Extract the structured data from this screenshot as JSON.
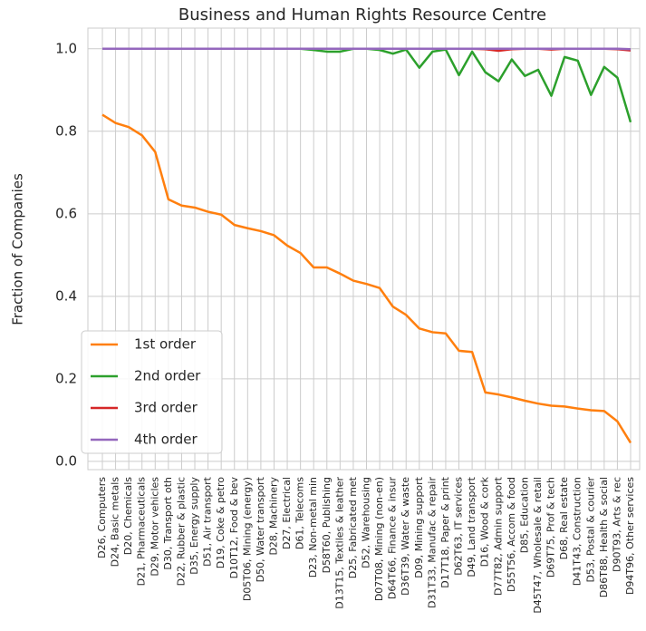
{
  "chart_data": {
    "type": "line",
    "title": "Business and Human Rights Resource Centre",
    "ylabel": "Fraction of Companies",
    "categories": [
      "D26, Computers",
      "D24, Basic metals",
      "D20, Chemicals",
      "D21, Pharmaceuticals",
      "D29, Motor vehicles",
      "D30, Transport oth",
      "D22, Rubber & plastic",
      "D35, Energy supply",
      "D51, Air transport",
      "D19, Coke & petro",
      "D10T12, Food & bev",
      "D05T06, Mining (energy)",
      "D50, Water transport",
      "D28, Machinery",
      "D27, Electrical",
      "D61, Telecoms",
      "D23, Non-metal min",
      "D58T60, Publishing",
      "D13T15, Textiles & leather",
      "D25, Fabricated met",
      "D52, Warehousing",
      "D07T08, Mining (non-en)",
      "D64T66, Finance & insur",
      "D36T39, Water & waste",
      "D09, Mining support",
      "D31T33, Manufac & repair",
      "D17T18, Paper & print",
      "D62T63, IT services",
      "D49, Land transport",
      "D16, Wood & cork",
      "D77T82, Admin support",
      "D55T56, Accom & food",
      "D85, Education",
      "D45T47, Wholesale & retail",
      "D69T75, Prof & tech",
      "D68, Real estate",
      "D41T43, Construction",
      "D53, Postal & courier",
      "D86T88, Health & social",
      "D90T93, Arts & rec",
      "D94T96, Other services"
    ],
    "series": [
      {
        "name": "1st order",
        "color": "#ff7f0e",
        "values": [
          0.84,
          0.82,
          0.81,
          0.79,
          0.75,
          0.635,
          0.62,
          0.615,
          0.605,
          0.598,
          0.573,
          0.565,
          0.558,
          0.548,
          0.523,
          0.505,
          0.47,
          0.47,
          0.455,
          0.438,
          0.43,
          0.42,
          0.375,
          0.355,
          0.322,
          0.313,
          0.31,
          0.268,
          0.265,
          0.167,
          0.162,
          0.155,
          0.147,
          0.14,
          0.135,
          0.133,
          0.128,
          0.124,
          0.122,
          0.097,
          0.045
        ]
      },
      {
        "name": "2nd order",
        "color": "#2ca02c",
        "values": [
          1.0,
          1.0,
          1.0,
          1.0,
          1.0,
          1.0,
          1.0,
          1.0,
          1.0,
          1.0,
          1.0,
          1.0,
          1.0,
          1.0,
          1.0,
          1.0,
          0.997,
          0.993,
          0.993,
          1.0,
          1.0,
          0.997,
          0.988,
          0.998,
          0.954,
          0.993,
          0.998,
          0.936,
          0.993,
          0.943,
          0.921,
          0.974,
          0.934,
          0.949,
          0.886,
          0.98,
          0.971,
          0.888,
          0.956,
          0.93,
          0.822
        ]
      },
      {
        "name": "3rd order",
        "color": "#d62728",
        "values": [
          1.0,
          1.0,
          1.0,
          1.0,
          1.0,
          1.0,
          1.0,
          1.0,
          1.0,
          1.0,
          1.0,
          1.0,
          1.0,
          1.0,
          1.0,
          1.0,
          1.0,
          1.0,
          1.0,
          1.0,
          1.0,
          1.0,
          1.0,
          1.0,
          1.0,
          1.0,
          1.0,
          1.0,
          1.0,
          0.999,
          0.995,
          0.999,
          1.0,
          1.0,
          0.998,
          1.0,
          1.0,
          1.0,
          1.0,
          0.999,
          0.996
        ]
      },
      {
        "name": "4th order",
        "color": "#9467bd",
        "values": [
          1.0,
          1.0,
          1.0,
          1.0,
          1.0,
          1.0,
          1.0,
          1.0,
          1.0,
          1.0,
          1.0,
          1.0,
          1.0,
          1.0,
          1.0,
          1.0,
          1.0,
          1.0,
          1.0,
          1.0,
          1.0,
          1.0,
          1.0,
          1.0,
          1.0,
          1.0,
          1.0,
          1.0,
          1.0,
          1.0,
          1.0,
          1.0,
          1.0,
          1.0,
          1.0,
          1.0,
          1.0,
          1.0,
          1.0,
          1.0,
          0.999
        ]
      }
    ],
    "ylim": [
      -0.02,
      1.05
    ],
    "yticks": [
      {
        "value": 0,
        "label": "0.0"
      },
      0.2,
      0.4,
      0.6,
      0.8,
      {
        "value": 1,
        "label": "1.0"
      }
    ],
    "grid": true,
    "legend": "lower left"
  }
}
